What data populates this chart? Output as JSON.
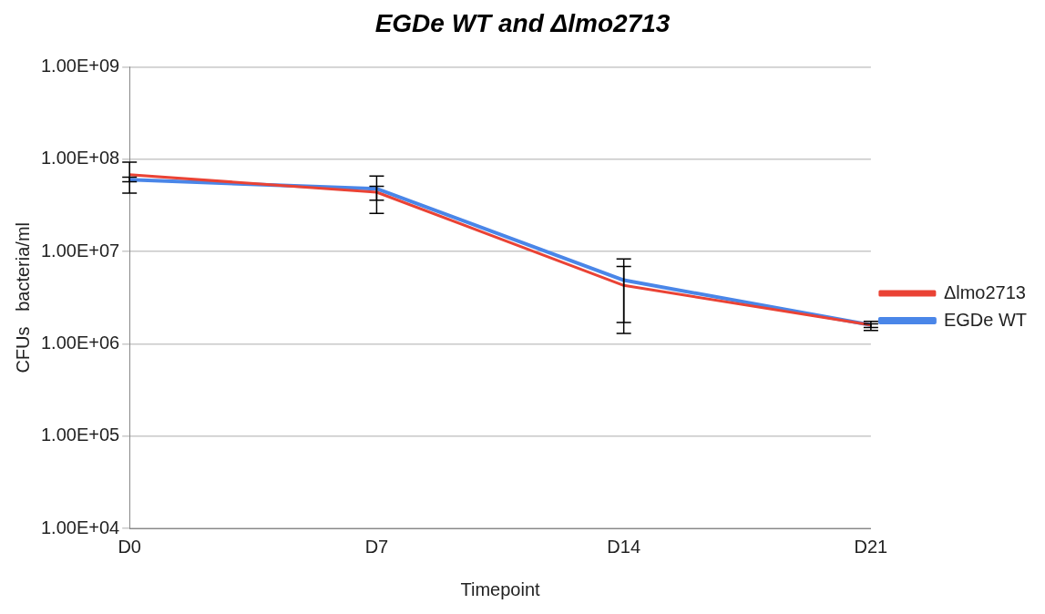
{
  "chart_data": {
    "type": "line",
    "title": "EGDe WT and Δlmo2713",
    "xlabel": "Timepoint",
    "ylabel": "CFUs   bacteria/ml",
    "categories": [
      "D0",
      "D7",
      "D14",
      "D21"
    ],
    "series": [
      {
        "name": "EGDe WT",
        "color": "#4a86e8",
        "values": [
          60000000.0,
          48000000.0,
          4900000.0,
          1600000.0
        ],
        "errors": [
          [
            57000000.0,
            64000000.0
          ],
          [
            26000000.0,
            66000000.0
          ],
          [
            1300000.0,
            8300000.0
          ],
          [
            1400000.0,
            1750000.0
          ]
        ]
      },
      {
        "name": "Δlmo2713",
        "color": "#ea4335",
        "values": [
          68000000.0,
          44000000.0,
          4300000.0,
          1600000.0
        ],
        "errors": [
          [
            43000000.0,
            93000000.0
          ],
          [
            36000000.0,
            51000000.0
          ],
          [
            1700000.0,
            6900000.0
          ],
          [
            1500000.0,
            1650000.0
          ]
        ]
      }
    ],
    "log": true,
    "ylim": [
      10000.0,
      1000000000.0
    ],
    "yticks": [
      {
        "value": 10000.0,
        "label": "1.00E+04"
      },
      {
        "value": 100000.0,
        "label": "1.00E+05"
      },
      {
        "value": 1000000.0,
        "label": "1.00E+06"
      },
      {
        "value": 10000000.0,
        "label": "1.00E+07"
      },
      {
        "value": 100000000.0,
        "label": "1.00E+08"
      },
      {
        "value": 1000000000.0,
        "label": "1.00E+09"
      }
    ],
    "grid": "y",
    "legend": "right",
    "marker": "none",
    "line_style": "solid"
  }
}
